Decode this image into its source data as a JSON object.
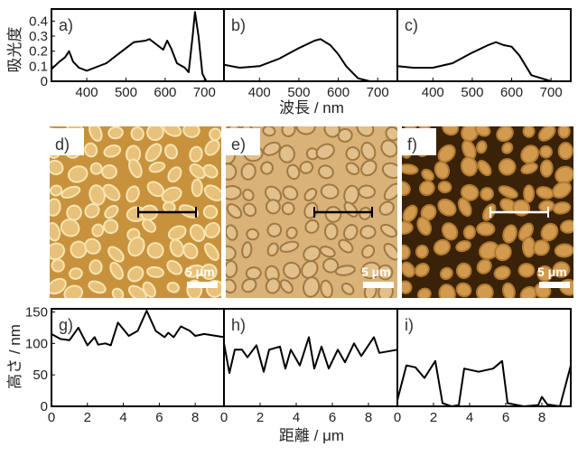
{
  "chart_data": [
    {
      "type": "line",
      "panel": "a)",
      "xlabel": "波長 / nm",
      "ylabel": "吸光度",
      "xlim": [
        310,
        750
      ],
      "ylim": [
        0,
        0.48
      ],
      "xticks": [
        "400",
        "500",
        "600",
        "700"
      ],
      "yticks": [
        "0",
        "0.1",
        "0.2",
        "0.3",
        "0.4"
      ],
      "x": [
        310,
        330,
        345,
        355,
        365,
        380,
        400,
        450,
        500,
        520,
        550,
        560,
        580,
        595,
        605,
        615,
        630,
        650,
        660,
        670,
        676,
        685,
        695,
        705,
        720
      ],
      "y": [
        0.08,
        0.13,
        0.16,
        0.2,
        0.13,
        0.09,
        0.07,
        0.12,
        0.22,
        0.26,
        0.27,
        0.28,
        0.24,
        0.21,
        0.27,
        0.22,
        0.12,
        0.09,
        0.06,
        0.3,
        0.46,
        0.3,
        0.05,
        0.0,
        0.0
      ]
    },
    {
      "type": "line",
      "panel": "b)",
      "xlim": [
        310,
        750
      ],
      "ylim": [
        0,
        0.48
      ],
      "xticks": [
        "400",
        "500",
        "600",
        "700"
      ],
      "x": [
        310,
        350,
        400,
        450,
        500,
        540,
        555,
        580,
        600,
        620,
        650,
        680,
        720
      ],
      "y": [
        0.11,
        0.09,
        0.1,
        0.15,
        0.22,
        0.27,
        0.28,
        0.24,
        0.18,
        0.1,
        0.02,
        0.0,
        0.0
      ]
    },
    {
      "type": "line",
      "panel": "c)",
      "xlim": [
        310,
        750
      ],
      "ylim": [
        0,
        0.48
      ],
      "xticks": [
        "400",
        "500",
        "600",
        "700"
      ],
      "x": [
        310,
        350,
        400,
        450,
        500,
        540,
        560,
        580,
        600,
        620,
        650,
        700,
        720
      ],
      "y": [
        0.1,
        0.09,
        0.09,
        0.12,
        0.19,
        0.24,
        0.26,
        0.24,
        0.23,
        0.17,
        0.04,
        0.0,
        0.0
      ]
    },
    {
      "type": "line",
      "panel": "g)",
      "xlabel": "距離 / μm",
      "ylabel": "高さ / nm",
      "xlim": [
        0,
        9.6
      ],
      "ylim": [
        0,
        155
      ],
      "xticks": [
        "0",
        "2",
        "4",
        "6",
        "8"
      ],
      "yticks": [
        "0",
        "50",
        "100",
        "150"
      ],
      "x": [
        0,
        0.5,
        1,
        1.5,
        2,
        2.4,
        2.6,
        3,
        3.3,
        3.7,
        4.3,
        4.8,
        5.3,
        5.8,
        6.3,
        6.5,
        6.8,
        7.2,
        7.7,
        8,
        8.5,
        9.6
      ],
      "y": [
        115,
        107,
        105,
        125,
        97,
        110,
        98,
        100,
        97,
        133,
        112,
        120,
        152,
        120,
        110,
        117,
        110,
        127,
        120,
        112,
        115,
        110
      ]
    },
    {
      "type": "line",
      "panel": "h)",
      "xlim": [
        0,
        9.6
      ],
      "ylim": [
        0,
        155
      ],
      "xticks": [
        "0",
        "2",
        "4",
        "6",
        "8"
      ],
      "x": [
        0,
        0.3,
        0.6,
        1,
        1.3,
        1.8,
        2.2,
        2.5,
        3.1,
        3.4,
        3.7,
        4.2,
        4.7,
        5,
        5.4,
        5.8,
        6.3,
        6.7,
        7.2,
        7.6,
        8.3,
        8.6,
        9.6
      ],
      "y": [
        100,
        53,
        90,
        90,
        78,
        97,
        55,
        90,
        95,
        60,
        90,
        65,
        110,
        60,
        95,
        60,
        90,
        70,
        100,
        80,
        110,
        85,
        90
      ]
    },
    {
      "type": "line",
      "panel": "i)",
      "xlim": [
        0,
        9.6
      ],
      "ylim": [
        0,
        155
      ],
      "xticks": [
        "0",
        "2",
        "4",
        "6",
        "8"
      ],
      "x": [
        0,
        0.5,
        1,
        1.5,
        2.1,
        2.5,
        3,
        3.4,
        3.7,
        4.5,
        5.3,
        5.8,
        6.1,
        7,
        7.8,
        8,
        8.3,
        9,
        9.6
      ],
      "y": [
        10,
        65,
        62,
        45,
        72,
        5,
        0,
        2,
        60,
        55,
        60,
        72,
        5,
        0,
        2,
        15,
        3,
        0,
        65
      ]
    }
  ],
  "images": [
    {
      "label": "d)",
      "scale": "5 μm"
    },
    {
      "label": "e)",
      "scale": "5 μm"
    },
    {
      "label": "f)",
      "scale": "5 μm"
    }
  ],
  "colors": {
    "d": "#c8923c",
    "e": "#d9b27a",
    "f": "#3a2208"
  }
}
